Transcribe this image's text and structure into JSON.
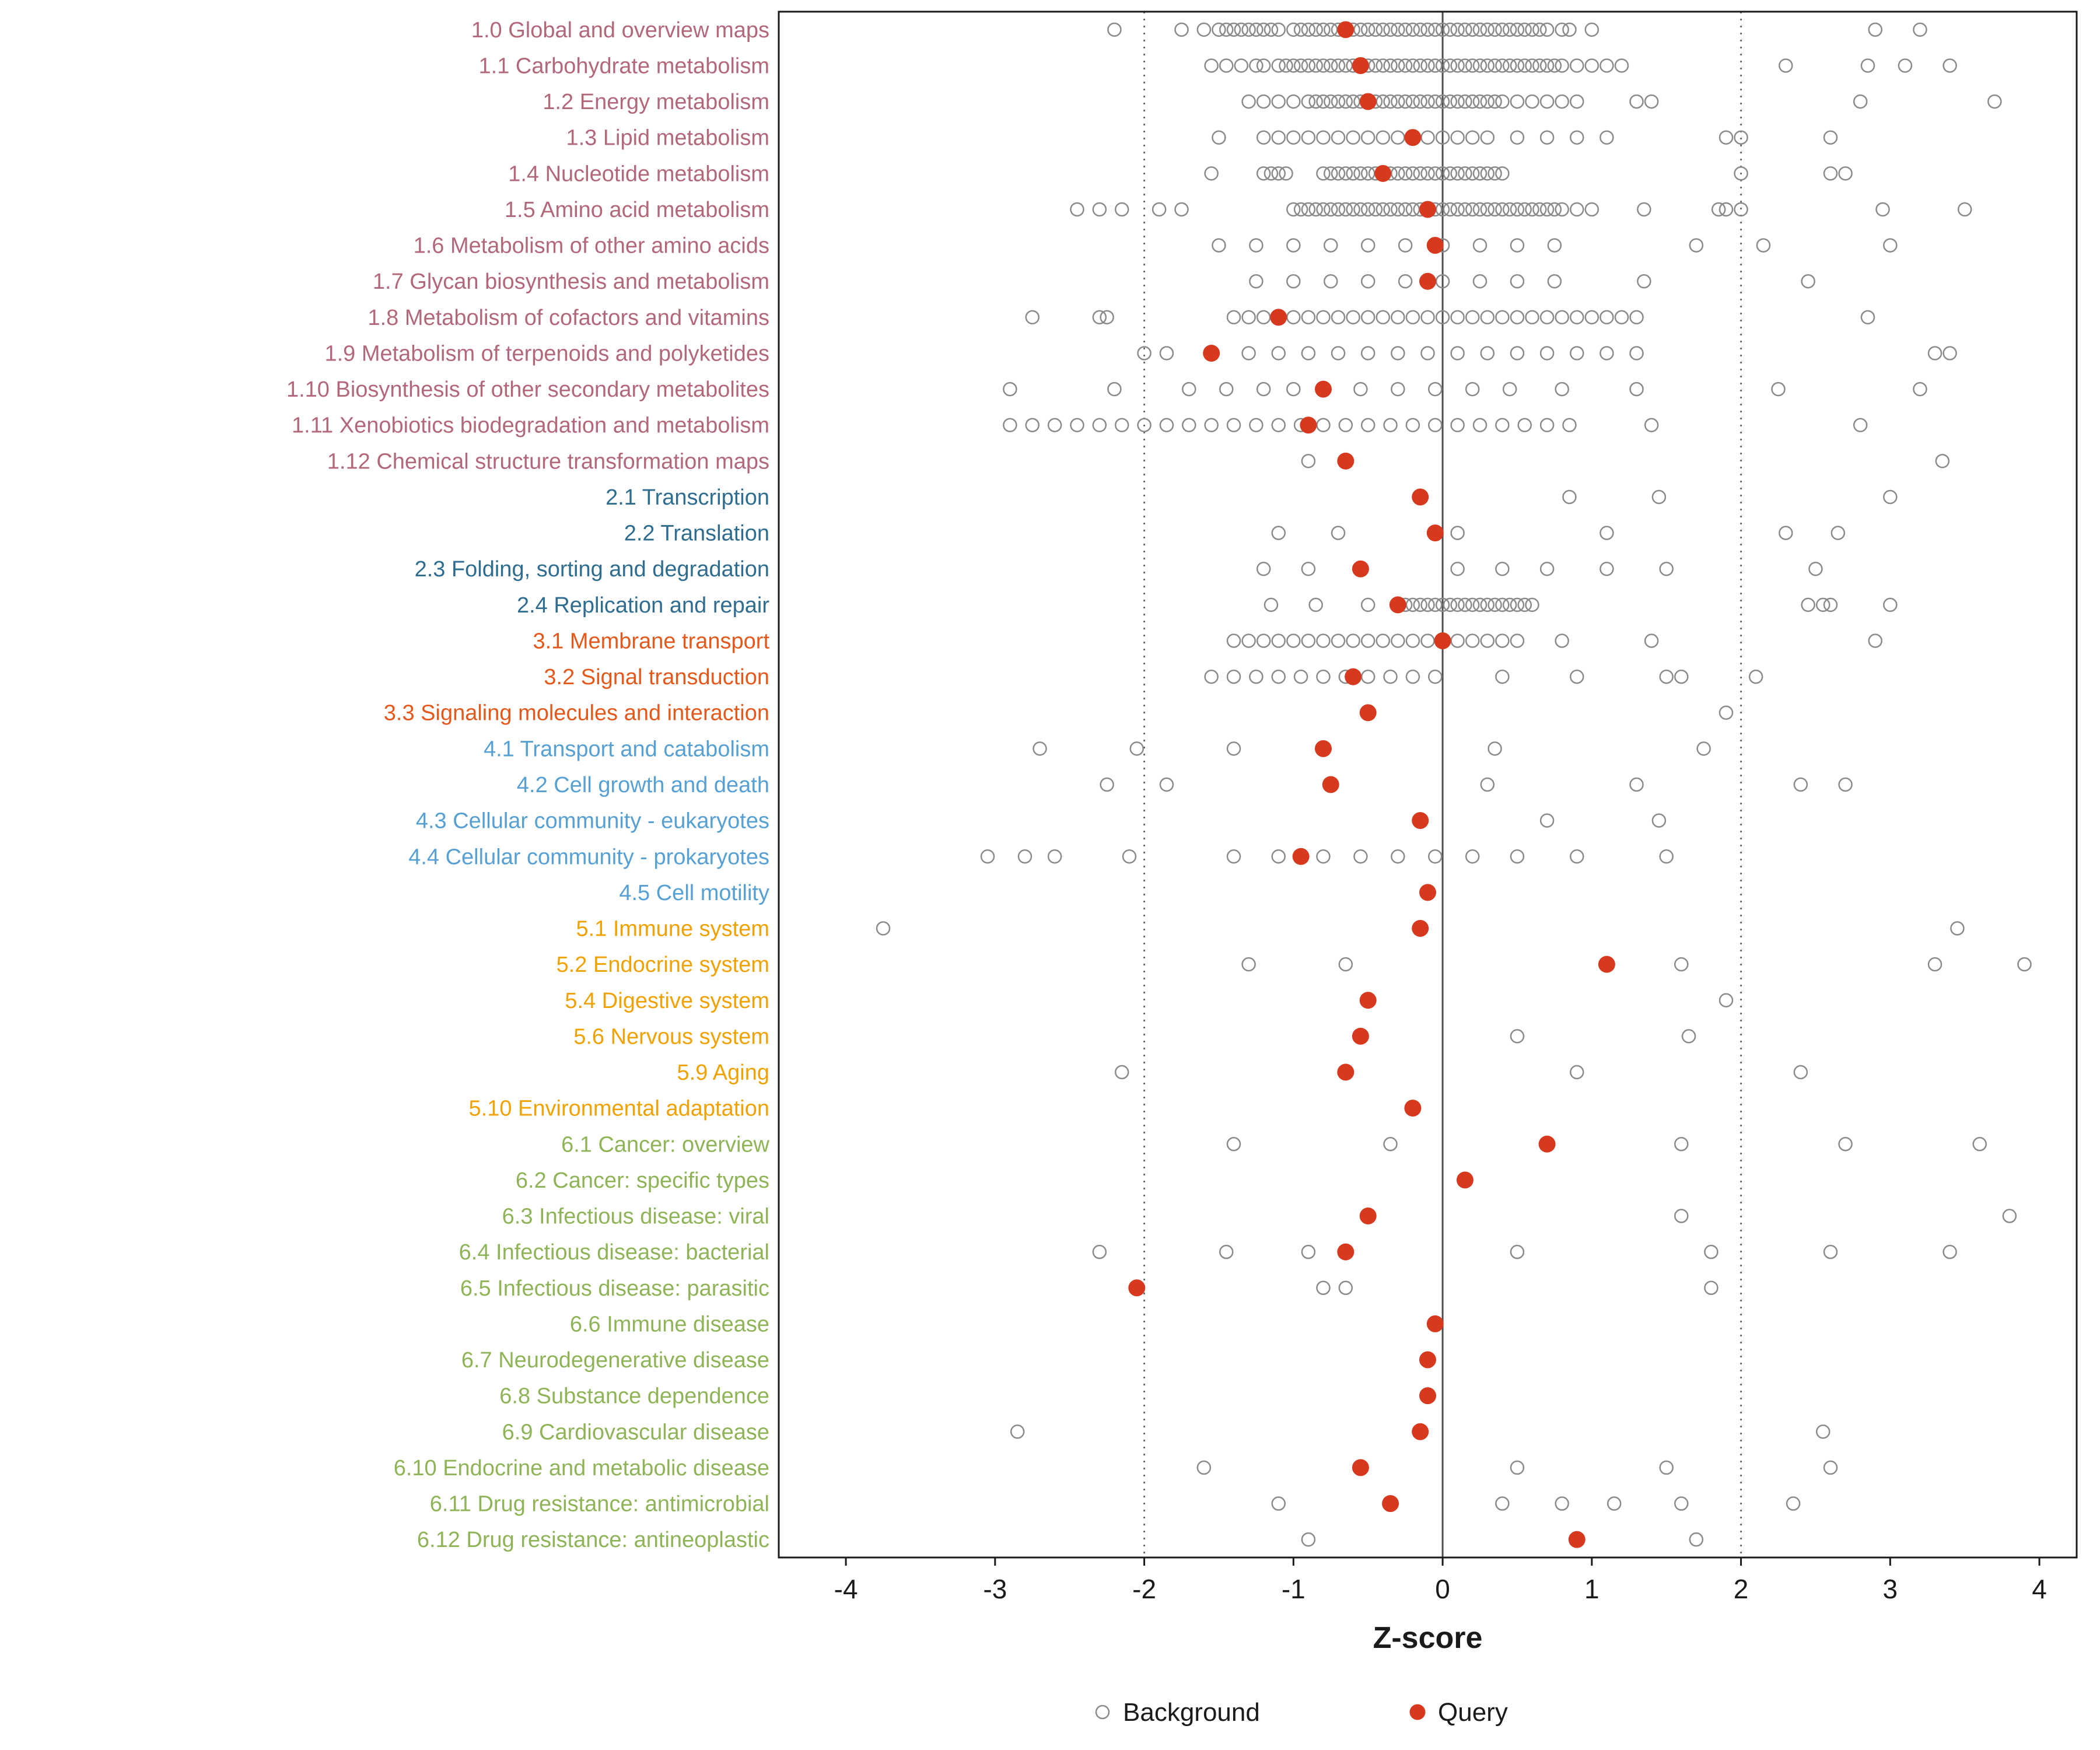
{
  "chart_data": {
    "type": "scatter",
    "title": "",
    "xlabel": "Z-score",
    "ylabel": "",
    "xlim": [
      -4.45,
      4.25
    ],
    "x_ticks": [
      -4,
      -3,
      -2,
      -1,
      0,
      1,
      2,
      3,
      4
    ],
    "dotted_gridlines_at": [
      -2,
      2
    ],
    "zero_line_at": 0,
    "grid": "off",
    "legend_position": "bottom-center",
    "legend": {
      "background_label": "Background",
      "query_label": "Query"
    },
    "colors": {
      "query": "#d7391f",
      "background_stroke": "#8a8a8a",
      "panel_border": "#1a1a1a",
      "zero_line": "#4d4d4d",
      "dotted_line": "#595959",
      "tick_text": "#1a1a1a",
      "group_colors": {
        "1": "#b2687a",
        "2": "#2e6d8f",
        "3": "#e4581b",
        "4": "#56a0d3",
        "5": "#f0a202",
        "6": "#8fb457"
      }
    },
    "rows": [
      {
        "label": "1.0 Global and overview maps",
        "group": "1",
        "query": -0.65,
        "band": [
          -1.0,
          0.55,
          0.05
        ],
        "background": [
          -2.2,
          -1.75,
          -1.6,
          -1.5,
          -1.45,
          -1.4,
          -1.35,
          -1.3,
          -1.25,
          -1.2,
          -1.15,
          -1.1,
          0.6,
          0.65,
          0.7,
          0.8,
          0.85,
          1.0,
          2.9,
          3.2
        ]
      },
      {
        "label": "1.1 Carbohydrate metabolism",
        "group": "1",
        "query": -0.55,
        "band": [
          -1.1,
          0.8,
          0.05
        ],
        "background": [
          -1.55,
          -1.45,
          -1.35,
          -1.25,
          -1.2,
          0.9,
          1.0,
          1.1,
          1.2,
          2.3,
          2.85,
          3.1,
          3.4
        ]
      },
      {
        "label": "1.2 Energy metabolism",
        "group": "1",
        "query": -0.5,
        "band": [
          -0.9,
          0.4,
          0.05
        ],
        "background": [
          -1.3,
          -1.2,
          -1.1,
          -1.0,
          0.5,
          0.6,
          0.7,
          0.8,
          0.9,
          1.3,
          1.4,
          2.8,
          3.7
        ]
      },
      {
        "label": "1.3 Lipid metabolism",
        "group": "1",
        "query": -0.2,
        "band": [
          -1.0,
          0.3,
          0.1
        ],
        "background": [
          -1.5,
          -1.2,
          -1.1,
          0.5,
          0.7,
          0.9,
          1.1,
          1.9,
          2.0,
          2.6
        ]
      },
      {
        "label": "1.4 Nucleotide metabolism",
        "group": "1",
        "query": -0.4,
        "band": [
          -0.8,
          0.4,
          0.05
        ],
        "background": [
          -1.55,
          -1.2,
          -1.15,
          -1.1,
          -1.05,
          2.0,
          2.6,
          2.7
        ]
      },
      {
        "label": "1.5 Amino acid metabolism",
        "group": "1",
        "query": -0.1,
        "band": [
          -1.0,
          0.8,
          0.05
        ],
        "background": [
          -2.45,
          -2.3,
          -2.15,
          -1.9,
          -1.75,
          0.9,
          1.0,
          1.35,
          1.85,
          1.9,
          2.0,
          2.95,
          3.5
        ]
      },
      {
        "label": "1.6 Metabolism of other amino acids",
        "group": "1",
        "query": -0.05,
        "band": [
          -1.5,
          0.8,
          0.25
        ],
        "background": [
          1.7,
          2.15,
          3.0
        ]
      },
      {
        "label": "1.7 Glycan biosynthesis and metabolism",
        "group": "1",
        "query": -0.1,
        "band": [
          -1.25,
          0.8,
          0.25
        ],
        "background": [
          1.35,
          2.45
        ]
      },
      {
        "label": "1.8 Metabolism of cofactors and vitamins",
        "group": "1",
        "query": -1.1,
        "band": [
          -1.4,
          1.3,
          0.1
        ],
        "background": [
          -2.75,
          -2.3,
          -2.25,
          2.85
        ]
      },
      {
        "label": "1.9 Metabolism of terpenoids and polyketides",
        "group": "1",
        "query": -1.55,
        "band": [
          -1.3,
          1.3,
          0.2
        ],
        "background": [
          -2.0,
          -1.85,
          3.3,
          3.4
        ]
      },
      {
        "label": "1.10 Biosynthesis of other secondary metabolites",
        "group": "1",
        "query": -0.8,
        "background": [
          -2.9,
          -2.2,
          -1.7,
          -1.45,
          -1.2,
          -1.0,
          -0.8,
          -0.55,
          -0.3,
          -0.05,
          0.2,
          0.45,
          0.8,
          1.3,
          2.25,
          3.2
        ]
      },
      {
        "label": "1.11 Xenobiotics biodegradation and metabolism",
        "group": "1",
        "query": -0.9,
        "band": [
          -2.9,
          0.8,
          0.15
        ],
        "background": [
          1.4,
          2.8
        ]
      },
      {
        "label": "1.12 Chemical structure transformation maps",
        "group": "1",
        "query": -0.65,
        "background": [
          -0.9,
          3.35
        ]
      },
      {
        "label": "2.1 Transcription",
        "group": "2",
        "query": -0.15,
        "background": [
          0.85,
          1.45,
          3.0
        ]
      },
      {
        "label": "2.2 Translation",
        "group": "2",
        "query": -0.05,
        "background": [
          -1.1,
          -0.7,
          0.1,
          1.1,
          2.3,
          2.65
        ]
      },
      {
        "label": "2.3 Folding, sorting and degradation",
        "group": "2",
        "query": -0.55,
        "background": [
          -1.2,
          -0.9,
          0.1,
          0.4,
          0.7,
          1.1,
          1.5,
          2.5
        ]
      },
      {
        "label": "2.4 Replication and repair",
        "group": "2",
        "query": -0.3,
        "band": [
          -0.3,
          0.6,
          0.05
        ],
        "background": [
          -1.15,
          -0.85,
          -0.5,
          2.45,
          2.55,
          2.6,
          3.0
        ]
      },
      {
        "label": "3.1 Membrane transport",
        "group": "3",
        "query": 0.0,
        "band": [
          -1.4,
          0.5,
          0.1
        ],
        "background": [
          0.8,
          1.4,
          2.9
        ]
      },
      {
        "label": "3.2 Signal transduction",
        "group": "3",
        "query": -0.6,
        "band": [
          -1.55,
          -0.1,
          0.15
        ],
        "background": [
          0.4,
          0.9,
          1.5,
          1.6,
          2.1
        ]
      },
      {
        "label": "3.3 Signaling molecules and interaction",
        "group": "3",
        "query": -0.5,
        "background": [
          1.9
        ]
      },
      {
        "label": "4.1 Transport and catabolism",
        "group": "4",
        "query": -0.8,
        "background": [
          -2.7,
          -2.05,
          -1.4,
          0.35,
          1.75
        ]
      },
      {
        "label": "4.2 Cell growth and death",
        "group": "4",
        "query": -0.75,
        "background": [
          -2.25,
          -1.85,
          0.3,
          1.3,
          2.4,
          2.7
        ]
      },
      {
        "label": "4.3 Cellular community - eukaryotes",
        "group": "4",
        "query": -0.15,
        "background": [
          0.7,
          1.45
        ]
      },
      {
        "label": "4.4 Cellular community - prokaryotes",
        "group": "4",
        "query": -0.95,
        "background": [
          -3.05,
          -2.8,
          -2.6,
          -2.1,
          -1.4,
          -1.1,
          -0.8,
          -0.55,
          -0.3,
          -0.05,
          0.2,
          0.5,
          0.9,
          1.5
        ]
      },
      {
        "label": "4.5 Cell motility",
        "group": "4",
        "query": -0.1,
        "background": []
      },
      {
        "label": "5.1 Immune system",
        "group": "5",
        "query": -0.15,
        "background": [
          -3.75,
          3.45
        ]
      },
      {
        "label": "5.2 Endocrine system",
        "group": "5",
        "query": 1.1,
        "background": [
          -1.3,
          -0.65,
          1.6,
          3.3,
          3.9
        ]
      },
      {
        "label": "5.4 Digestive system",
        "group": "5",
        "query": -0.5,
        "background": [
          1.9
        ]
      },
      {
        "label": "5.6 Nervous system",
        "group": "5",
        "query": -0.55,
        "background": [
          0.5,
          1.65
        ]
      },
      {
        "label": "5.9 Aging",
        "group": "5",
        "query": -0.65,
        "background": [
          -2.15,
          0.9,
          2.4
        ]
      },
      {
        "label": "5.10 Environmental adaptation",
        "group": "5",
        "query": -0.2,
        "background": []
      },
      {
        "label": "6.1 Cancer: overview",
        "group": "6",
        "query": 0.7,
        "background": [
          -1.4,
          -0.35,
          1.6,
          2.7,
          3.6
        ]
      },
      {
        "label": "6.2 Cancer: specific types",
        "group": "6",
        "query": 0.15,
        "background": []
      },
      {
        "label": "6.3 Infectious disease: viral",
        "group": "6",
        "query": -0.5,
        "background": [
          1.6,
          3.8
        ]
      },
      {
        "label": "6.4 Infectious disease: bacterial",
        "group": "6",
        "query": -0.65,
        "background": [
          -2.3,
          -1.45,
          -0.9,
          0.5,
          1.8,
          2.6,
          3.4
        ]
      },
      {
        "label": "6.5 Infectious disease: parasitic",
        "group": "6",
        "query": -2.05,
        "background": [
          -0.8,
          -0.65,
          1.8
        ]
      },
      {
        "label": "6.6 Immune disease",
        "group": "6",
        "query": -0.05,
        "background": []
      },
      {
        "label": "6.7 Neurodegenerative disease",
        "group": "6",
        "query": -0.1,
        "background": []
      },
      {
        "label": "6.8 Substance dependence",
        "group": "6",
        "query": -0.1,
        "background": []
      },
      {
        "label": "6.9 Cardiovascular disease",
        "group": "6",
        "query": -0.15,
        "background": [
          -2.85,
          2.55
        ]
      },
      {
        "label": "6.10 Endocrine and metabolic disease",
        "group": "6",
        "query": -0.55,
        "background": [
          -1.6,
          0.5,
          1.5,
          2.6
        ]
      },
      {
        "label": "6.11 Drug resistance: antimicrobial",
        "group": "6",
        "query": -0.35,
        "background": [
          -1.1,
          0.4,
          0.8,
          1.15,
          1.6,
          2.35
        ]
      },
      {
        "label": "6.12 Drug resistance: antineoplastic",
        "group": "6",
        "query": 0.9,
        "background": [
          -0.9,
          1.7
        ]
      }
    ]
  }
}
